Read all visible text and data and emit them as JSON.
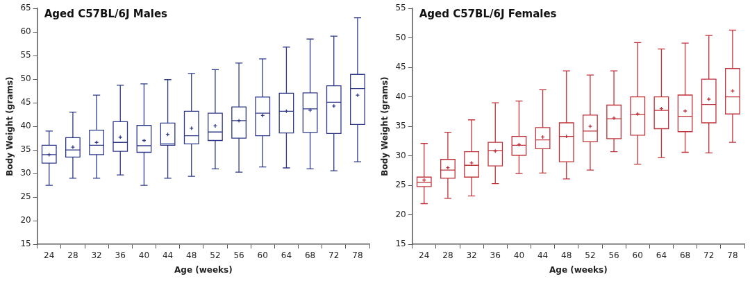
{
  "chart_data": [
    {
      "type": "box",
      "title": "Aged C57BL/6J Males",
      "xlabel": "Age (weeks)",
      "ylabel": "Body Weight (grams)",
      "categories": [
        "24",
        "28",
        "32",
        "36",
        "40",
        "44",
        "48",
        "52",
        "56",
        "60",
        "64",
        "68",
        "72",
        "78"
      ],
      "ylim": [
        15,
        65
      ],
      "yticks": [
        15,
        20,
        25,
        30,
        35,
        40,
        45,
        50,
        55,
        60,
        65
      ],
      "grid": false,
      "legend": false,
      "series": [
        {
          "color": "#2e3a87",
          "boxes": [
            {
              "low": 27.5,
              "q1": 32.2,
              "median": 34,
              "q3": 36,
              "high": 39,
              "mean": 34
            },
            {
              "low": 29,
              "q1": 33.5,
              "median": 35,
              "q3": 37.6,
              "high": 43,
              "mean": 35.6
            },
            {
              "low": 29,
              "q1": 34,
              "median": 36,
              "q3": 39.2,
              "high": 46.6,
              "mean": 36.6
            },
            {
              "low": 29.7,
              "q1": 34.7,
              "median": 36.6,
              "q3": 41,
              "high": 48.7,
              "mean": 37.7
            },
            {
              "low": 27.5,
              "q1": 34.5,
              "median": 35.9,
              "q3": 40.2,
              "high": 49,
              "mean": 37
            },
            {
              "low": 29,
              "q1": 36,
              "median": 36.3,
              "q3": 40.7,
              "high": 49.9,
              "mean": 38.3
            },
            {
              "low": 29.4,
              "q1": 36.3,
              "median": 38,
              "q3": 43.2,
              "high": 51.2,
              "mean": 39.6
            },
            {
              "low": 31,
              "q1": 37,
              "median": 38.8,
              "q3": 42.8,
              "high": 52,
              "mean": 40.1
            },
            {
              "low": 30.3,
              "q1": 37.5,
              "median": 41.2,
              "q3": 44.1,
              "high": 53.4,
              "mean": 41.2
            },
            {
              "low": 31.4,
              "q1": 38,
              "median": 42.8,
              "q3": 46.2,
              "high": 54.3,
              "mean": 42.3
            },
            {
              "low": 31.2,
              "q1": 38.6,
              "median": 43.2,
              "q3": 47,
              "high": 56.8,
              "mean": 43.2
            },
            {
              "low": 31,
              "q1": 38.7,
              "median": 43.7,
              "q3": 47.1,
              "high": 58.5,
              "mean": 43.4
            },
            {
              "low": 30.6,
              "q1": 38.5,
              "median": 45.1,
              "q3": 48.6,
              "high": 59.1,
              "mean": 44.3
            },
            {
              "low": 32.5,
              "q1": 40.4,
              "median": 48,
              "q3": 51,
              "high": 63,
              "mean": 46.6
            }
          ]
        }
      ]
    },
    {
      "type": "box",
      "title": "Aged C57BL/6J Females",
      "xlabel": "Age (weeks)",
      "ylabel": "Body Weight (grams)",
      "categories": [
        "24",
        "28",
        "32",
        "36",
        "40",
        "44",
        "48",
        "52",
        "56",
        "60",
        "64",
        "68",
        "72",
        "78"
      ],
      "ylim": [
        15,
        55
      ],
      "yticks": [
        15,
        20,
        25,
        30,
        35,
        40,
        45,
        50,
        55
      ],
      "grid": false,
      "legend": false,
      "series": [
        {
          "color": "#c0323a",
          "boxes": [
            {
              "low": 21.9,
              "q1": 24.8,
              "median": 25.5,
              "q3": 26.4,
              "high": 32.1,
              "mean": 25.9
            },
            {
              "low": 22.8,
              "q1": 26.2,
              "median": 27.6,
              "q3": 29.4,
              "high": 34,
              "mean": 28
            },
            {
              "low": 23.2,
              "q1": 26.4,
              "median": 28.4,
              "q3": 30.7,
              "high": 36.1,
              "mean": 28.8
            },
            {
              "low": 25.3,
              "q1": 28.3,
              "median": 30.9,
              "q3": 32.3,
              "high": 39,
              "mean": 30.8
            },
            {
              "low": 27,
              "q1": 30.1,
              "median": 31.8,
              "q3": 33.3,
              "high": 39.3,
              "mean": 31.9
            },
            {
              "low": 27.1,
              "q1": 31.2,
              "median": 32.7,
              "q3": 34.8,
              "high": 41.2,
              "mean": 33.2
            },
            {
              "low": 26.1,
              "q1": 29,
              "median": 33.3,
              "q3": 35.6,
              "high": 44.4,
              "mean": 33.3
            },
            {
              "low": 27.6,
              "q1": 32.4,
              "median": 34.2,
              "q3": 36.9,
              "high": 43.7,
              "mean": 35
            },
            {
              "low": 30.7,
              "q1": 32.9,
              "median": 36.3,
              "q3": 38.6,
              "high": 44.4,
              "mean": 36.4
            },
            {
              "low": 28.6,
              "q1": 33.5,
              "median": 37,
              "q3": 40,
              "high": 49.2,
              "mean": 37.1
            },
            {
              "low": 29.7,
              "q1": 34.6,
              "median": 37.7,
              "q3": 40,
              "high": 48.1,
              "mean": 38
            },
            {
              "low": 30.6,
              "q1": 34.1,
              "median": 36.7,
              "q3": 40.3,
              "high": 49.1,
              "mean": 37.6
            },
            {
              "low": 30.5,
              "q1": 35.6,
              "median": 38.7,
              "q3": 43,
              "high": 50.4,
              "mean": 39.6
            },
            {
              "low": 32.3,
              "q1": 37.1,
              "median": 40,
              "q3": 44.8,
              "high": 51.3,
              "mean": 41
            }
          ]
        }
      ]
    }
  ]
}
